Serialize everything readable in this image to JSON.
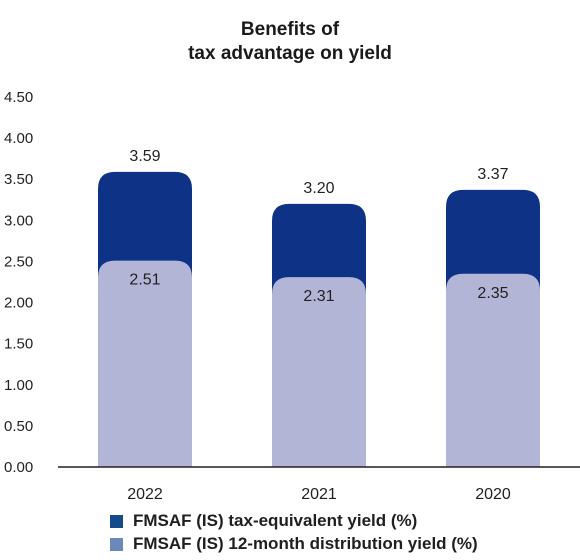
{
  "chart_data": {
    "type": "bar",
    "stacked": "overlay",
    "title_lines": [
      "Benefits of",
      "tax advantage on yield"
    ],
    "categories": [
      "2022",
      "2021",
      "2020"
    ],
    "series": [
      {
        "name": "FMSAF (IS) tax-equivalent yield (%)",
        "values": [
          3.59,
          3.2,
          3.37
        ],
        "color": "#0e3386"
      },
      {
        "name": "FMSAF (IS) 12-month distribution yield (%)",
        "values": [
          2.51,
          2.31,
          2.35
        ],
        "color": "#b3b5d6"
      }
    ],
    "y_ticks": [
      "0.00",
      "0.50",
      "1.00",
      "1.50",
      "2.00",
      "2.50",
      "3.00",
      "3.50",
      "4.00",
      "4.50"
    ],
    "ylim": [
      0,
      4.5
    ],
    "grid": false,
    "legend_position": "bottom-left",
    "legend_colors": [
      "#134b8d",
      "#6b89b8"
    ]
  }
}
